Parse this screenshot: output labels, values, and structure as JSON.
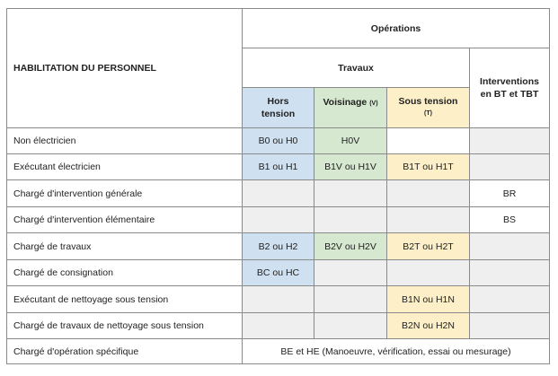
{
  "header": {
    "personnel": "HABILITATION DU PERSONNEL",
    "operations": "Opérations",
    "travaux": "Travaux",
    "interventions_line1": "Interventions",
    "interventions_line2": "en BT et TBT",
    "hors_tension_1": "Hors",
    "hors_tension_2": "tension",
    "voisinage": "Voisinage",
    "voisinage_code": "(V)",
    "sous_tension": "Sous tension",
    "sous_tension_code": "(T)"
  },
  "rows": [
    {
      "label": "Non électricien",
      "hors": "B0 ou H0",
      "voisinage": "H0V",
      "sous": "",
      "interv": ""
    },
    {
      "label": "Exécutant électricien",
      "hors": "B1 ou H1",
      "voisinage": "B1V ou H1V",
      "sous": "B1T ou H1T",
      "interv": ""
    },
    {
      "label": "Chargé d'intervention générale",
      "hors": "",
      "voisinage": "",
      "sous": "",
      "interv": "BR"
    },
    {
      "label": "Chargé d'intervention élémentaire",
      "hors": "",
      "voisinage": "",
      "sous": "",
      "interv": "BS"
    },
    {
      "label": "Chargé de travaux",
      "hors": "B2 ou H2",
      "voisinage": "B2V ou H2V",
      "sous": "B2T ou H2T",
      "interv": ""
    },
    {
      "label": "Chargé de consignation",
      "hors": "BC ou HC",
      "voisinage": "",
      "sous": "",
      "interv": ""
    },
    {
      "label": "Exécutant de nettoyage sous tension",
      "hors": "",
      "voisinage": "",
      "sous": "B1N ou H1N",
      "interv": ""
    },
    {
      "label": "Chargé de travaux de nettoyage sous tension",
      "hors": "",
      "voisinage": "",
      "sous": "B2N ou H2N",
      "interv": ""
    },
    {
      "label": "Chargé d'opération spécifique",
      "merged": "BE et HE (Manoeuvre, vérification, essai ou mesurage)"
    }
  ],
  "colors": {
    "hors_tension": "#cfe0f1",
    "voisinage": "#d6e8cf",
    "sous_tension": "#fdf0c9",
    "empty_cell": "#efefef",
    "border": "#8a8a8a"
  }
}
